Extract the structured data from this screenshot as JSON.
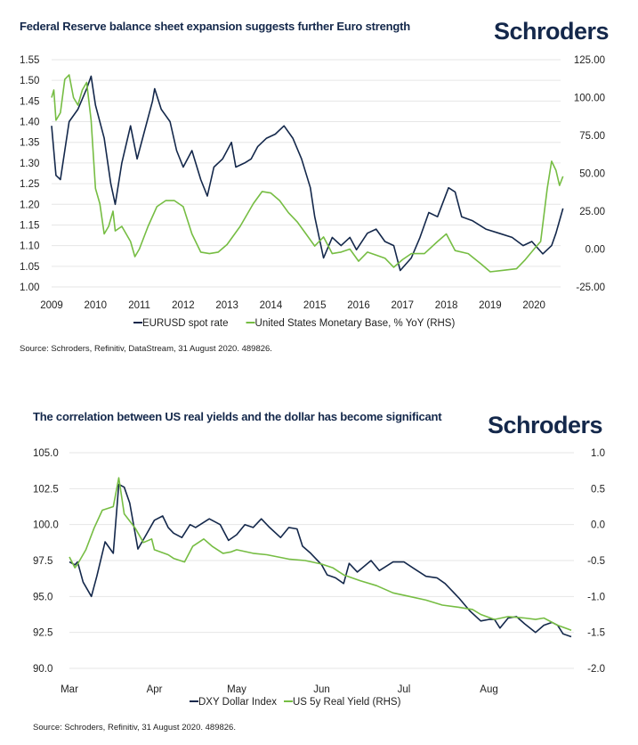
{
  "brand": {
    "logo_text": "Schroders",
    "navy": "#14284b",
    "green": "#76bd43"
  },
  "chart_data": [
    {
      "type": "line",
      "title": "Federal Reserve balance sheet expansion suggests further Euro strength",
      "source": "Source: Schroders, Refinitiv, DataStream, 31 August 2020. 489826.",
      "x_ticks": [
        "2009",
        "2010",
        "2011",
        "2012",
        "2013",
        "2014",
        "2015",
        "2016",
        "2017",
        "2018",
        "2019",
        "2020"
      ],
      "xlim": [
        2009,
        2020.95
      ],
      "y_left_ticks": [
        "1.00",
        "1.05",
        "1.10",
        "1.15",
        "1.20",
        "1.25",
        "1.30",
        "1.35",
        "1.40",
        "1.45",
        "1.50",
        "1.55"
      ],
      "ylim_left": [
        1.0,
        1.55
      ],
      "y_right_ticks": [
        "-25.00",
        "0.00",
        "25.00",
        "50.00",
        "75.00",
        "100.00",
        "125.00"
      ],
      "ylim_right": [
        -25,
        125
      ],
      "grid": true,
      "legend_position": "bottom",
      "series": [
        {
          "name": "EURUSD spot rate",
          "axis": "left",
          "color": "#14284b",
          "x": [
            2009.0,
            2009.1,
            2009.2,
            2009.3,
            2009.4,
            2009.6,
            2009.8,
            2009.9,
            2010.0,
            2010.2,
            2010.35,
            2010.45,
            2010.6,
            2010.8,
            2010.95,
            2011.1,
            2011.3,
            2011.35,
            2011.5,
            2011.7,
            2011.85,
            2012.0,
            2012.2,
            2012.4,
            2012.55,
            2012.7,
            2012.9,
            2013.1,
            2013.2,
            2013.4,
            2013.55,
            2013.7,
            2013.9,
            2014.1,
            2014.3,
            2014.5,
            2014.7,
            2014.9,
            2015.0,
            2015.2,
            2015.4,
            2015.6,
            2015.8,
            2015.95,
            2016.2,
            2016.4,
            2016.6,
            2016.8,
            2016.95,
            2017.2,
            2017.4,
            2017.6,
            2017.8,
            2018.05,
            2018.2,
            2018.35,
            2018.6,
            2018.9,
            2019.2,
            2019.5,
            2019.75,
            2019.95,
            2020.2,
            2020.4,
            2020.5,
            2020.66
          ],
          "y": [
            1.39,
            1.27,
            1.26,
            1.33,
            1.4,
            1.43,
            1.48,
            1.51,
            1.44,
            1.36,
            1.25,
            1.2,
            1.3,
            1.39,
            1.31,
            1.37,
            1.45,
            1.48,
            1.43,
            1.4,
            1.33,
            1.29,
            1.33,
            1.26,
            1.22,
            1.29,
            1.31,
            1.35,
            1.29,
            1.3,
            1.31,
            1.34,
            1.36,
            1.37,
            1.39,
            1.36,
            1.31,
            1.24,
            1.17,
            1.07,
            1.12,
            1.1,
            1.12,
            1.09,
            1.13,
            1.14,
            1.11,
            1.1,
            1.04,
            1.07,
            1.12,
            1.18,
            1.17,
            1.24,
            1.23,
            1.17,
            1.16,
            1.14,
            1.13,
            1.12,
            1.1,
            1.11,
            1.08,
            1.1,
            1.13,
            1.19
          ]
        },
        {
          "name": "United States Monetary Base, % YoY (RHS)",
          "axis": "right",
          "color": "#76bd43",
          "x": [
            2009.0,
            2009.05,
            2009.1,
            2009.2,
            2009.3,
            2009.4,
            2009.5,
            2009.6,
            2009.7,
            2009.8,
            2009.9,
            2010.0,
            2010.1,
            2010.2,
            2010.3,
            2010.4,
            2010.45,
            2010.6,
            2010.8,
            2010.9,
            2011.0,
            2011.2,
            2011.4,
            2011.6,
            2011.8,
            2012.0,
            2012.2,
            2012.4,
            2012.6,
            2012.8,
            2013.0,
            2013.3,
            2013.6,
            2013.8,
            2014.0,
            2014.2,
            2014.4,
            2014.6,
            2014.8,
            2015.0,
            2015.2,
            2015.4,
            2015.6,
            2015.8,
            2016.0,
            2016.2,
            2016.4,
            2016.6,
            2016.8,
            2017.0,
            2017.2,
            2017.5,
            2017.8,
            2018.0,
            2018.2,
            2018.5,
            2018.8,
            2019.0,
            2019.3,
            2019.6,
            2019.8,
            2020.0,
            2020.15,
            2020.3,
            2020.4,
            2020.5,
            2020.58,
            2020.66
          ],
          "y": [
            100,
            105,
            85,
            90,
            112,
            115,
            100,
            95,
            105,
            110,
            85,
            40,
            30,
            10,
            15,
            25,
            12,
            15,
            5,
            -5,
            0,
            15,
            28,
            32,
            32,
            28,
            10,
            -2,
            -3,
            -2,
            3,
            15,
            30,
            38,
            37,
            32,
            24,
            18,
            10,
            2,
            8,
            -3,
            -2,
            0,
            -8,
            -2,
            -4,
            -6,
            -12,
            -7,
            -3,
            -3,
            5,
            10,
            -1,
            -3,
            -10,
            -15,
            -14,
            -13,
            -7,
            0,
            5,
            40,
            58,
            52,
            42,
            48
          ]
        }
      ]
    },
    {
      "type": "line",
      "title": "The correlation between US real yields and the dollar has become significant",
      "source": "Source: Schroders, Refinitiv, 31 August 2020. 489826.",
      "x_unit": "days since 1 March 2020",
      "x_ticks": [
        "Mar",
        "Apr",
        "May",
        "Jun",
        "Jul",
        "Aug"
      ],
      "x_tick_values": [
        0,
        31,
        61,
        92,
        122,
        153
      ],
      "xlim": [
        0,
        183
      ],
      "y_left_ticks": [
        "90.0",
        "92.5",
        "95.0",
        "97.5",
        "100.0",
        "102.5",
        "105.0"
      ],
      "ylim_left": [
        90,
        105
      ],
      "y_right_ticks": [
        "-2.0",
        "-1.5",
        "-1.0",
        "-0.5",
        "0.0",
        "0.5",
        "1.0"
      ],
      "ylim_right": [
        -2,
        1
      ],
      "grid": true,
      "legend_position": "bottom",
      "series": [
        {
          "name": "DXY Dollar Index",
          "axis": "left",
          "color": "#14284b",
          "x": [
            0,
            2,
            3,
            5,
            8,
            10,
            13,
            16,
            18,
            20,
            22,
            25,
            28,
            31,
            34,
            36,
            38,
            41,
            44,
            46,
            51,
            55,
            58,
            61,
            64,
            67,
            70,
            73,
            77,
            80,
            83,
            85,
            88,
            92,
            94,
            97,
            100,
            102,
            105,
            110,
            113,
            118,
            122,
            126,
            130,
            134,
            137,
            142,
            146,
            150,
            153,
            155,
            157,
            160,
            163,
            166,
            170,
            173,
            176,
            178,
            180,
            183
          ],
          "y": [
            97.4,
            97.2,
            97.4,
            96.0,
            95.0,
            96.4,
            98.8,
            98.0,
            102.8,
            102.6,
            101.5,
            98.3,
            99.3,
            100.3,
            100.6,
            99.8,
            99.4,
            99.1,
            100.0,
            99.8,
            100.4,
            100.0,
            98.9,
            99.3,
            100.0,
            99.8,
            100.4,
            99.8,
            99.1,
            99.8,
            99.7,
            98.5,
            98.0,
            97.2,
            96.5,
            96.3,
            95.9,
            97.3,
            96.7,
            97.5,
            96.8,
            97.4,
            97.4,
            96.9,
            96.4,
            96.3,
            95.9,
            94.9,
            94.0,
            93.3,
            93.4,
            93.4,
            92.8,
            93.5,
            93.6,
            93.1,
            92.5,
            93.0,
            93.2,
            93.0,
            92.4,
            92.2
          ]
        },
        {
          "name": "US 5y Real Yield (RHS)",
          "axis": "right",
          "color": "#76bd43",
          "x": [
            0,
            2,
            3,
            6,
            9,
            12,
            16,
            18,
            20,
            24,
            27,
            30,
            31,
            36,
            38,
            42,
            45,
            49,
            52,
            56,
            59,
            61,
            67,
            72,
            80,
            86,
            92,
            96,
            100,
            106,
            112,
            118,
            124,
            130,
            136,
            142,
            147,
            150,
            155,
            160,
            166,
            170,
            173,
            178,
            183
          ],
          "y": [
            -0.45,
            -0.6,
            -0.55,
            -0.35,
            -0.05,
            0.2,
            0.25,
            0.65,
            0.15,
            -0.05,
            -0.25,
            -0.2,
            -0.35,
            -0.42,
            -0.47,
            -0.52,
            -0.3,
            -0.2,
            -0.3,
            -0.4,
            -0.38,
            -0.35,
            -0.4,
            -0.42,
            -0.48,
            -0.5,
            -0.55,
            -0.6,
            -0.7,
            -0.78,
            -0.85,
            -0.95,
            -1.0,
            -1.05,
            -1.12,
            -1.15,
            -1.18,
            -1.25,
            -1.32,
            -1.28,
            -1.3,
            -1.32,
            -1.3,
            -1.4,
            -1.47
          ]
        }
      ]
    }
  ]
}
